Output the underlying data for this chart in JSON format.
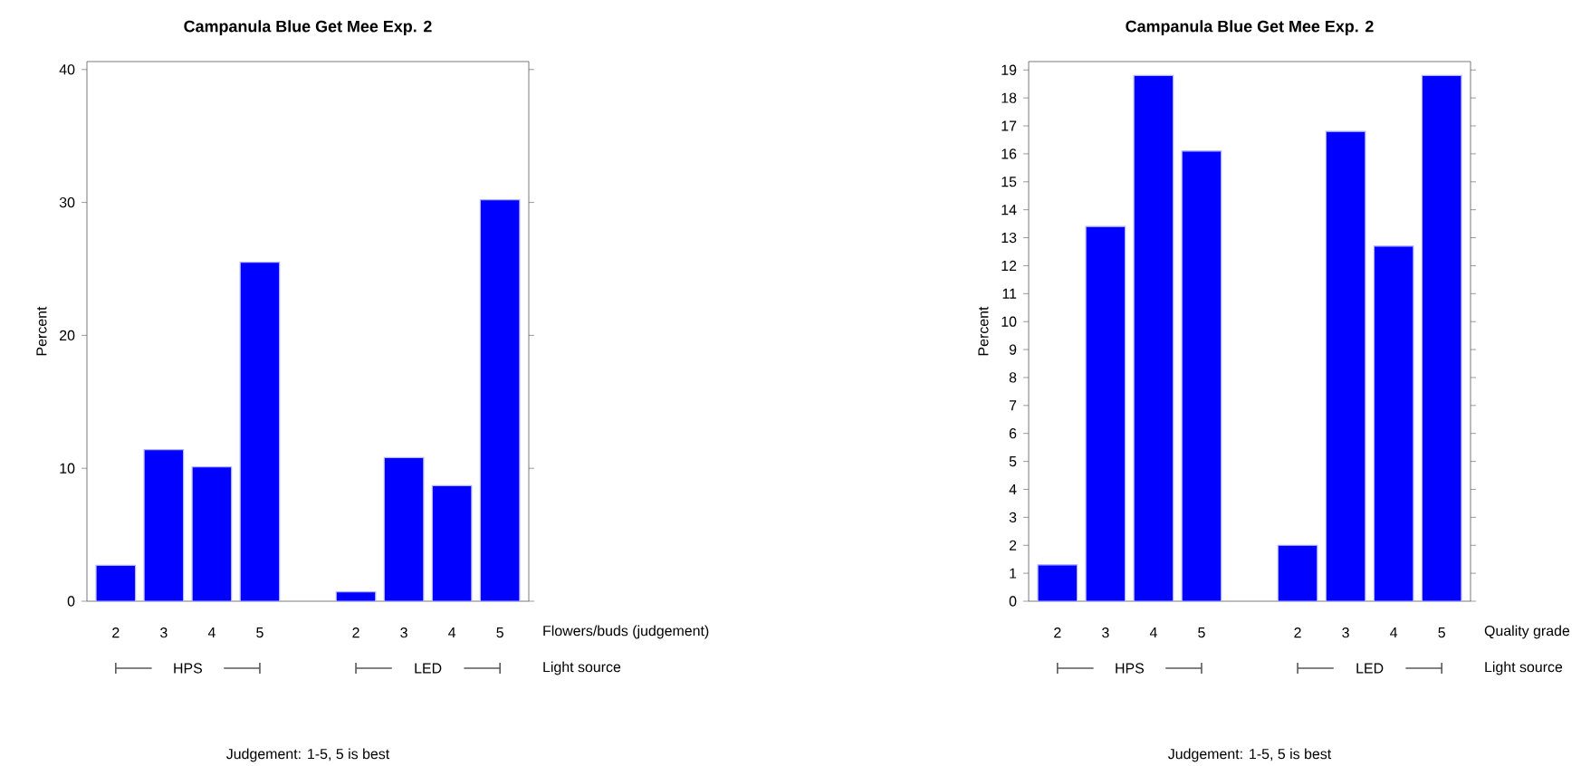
{
  "chart_data": [
    {
      "type": "bar",
      "title": "Campanula Blue Get Mee Exp. 2",
      "xlabel": "Flowers/buds (judgement)",
      "ylabel": "Percent",
      "color": "#0000ff",
      "categories": [
        "2",
        "3",
        "4",
        "5",
        null,
        "2",
        "3",
        "4",
        "5"
      ],
      "values": [
        2.7,
        11.4,
        10.1,
        25.5,
        null,
        0.7,
        10.8,
        8.7,
        30.2
      ],
      "ylim": [
        0,
        40.6
      ],
      "yticks": [
        0,
        10,
        20,
        30,
        40
      ],
      "annotations": [
        "HPS",
        "LED",
        "Light source",
        "Judgement: 1-5, 5 is best"
      ]
    },
    {
      "type": "bar",
      "title": "Campanula Blue Get Mee Exp. 2",
      "xlabel": "Quality grade",
      "ylabel": "Percent",
      "color": "#0000ff",
      "categories": [
        "2",
        "3",
        "4",
        "5",
        null,
        "2",
        "3",
        "4",
        "5"
      ],
      "values": [
        1.3,
        13.4,
        18.8,
        16.1,
        null,
        2.0,
        16.8,
        12.7,
        18.8
      ],
      "ylim": [
        0,
        19.3
      ],
      "yticks": [
        0,
        1,
        2,
        3,
        4,
        5,
        6,
        7,
        8,
        9,
        10,
        11,
        12,
        13,
        14,
        15,
        16,
        17,
        18,
        19
      ],
      "annotations": [
        "HPS",
        "LED",
        "Light source",
        "Judgement: 1-5, 5 is best"
      ]
    }
  ]
}
